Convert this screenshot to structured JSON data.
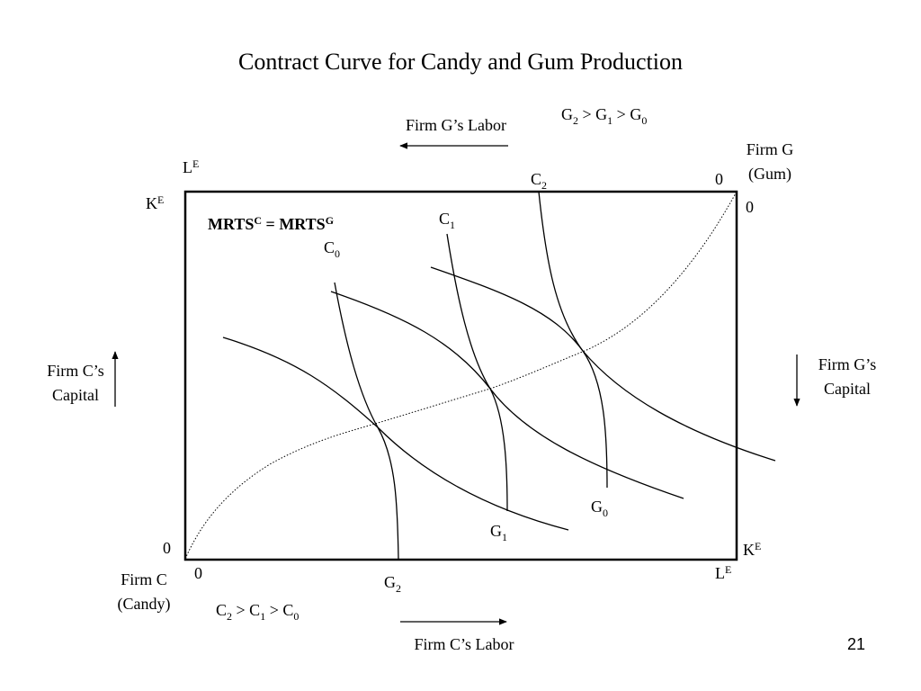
{
  "title": "Contract Curve for Candy and Gum Production",
  "slide_number": "21",
  "box": {
    "top_left": {
      "letter": "K",
      "sup": "E"
    },
    "top_left_above": {
      "letter": "L",
      "sup": "E"
    },
    "bottom_right_k": {
      "letter": "K",
      "sup": "E"
    },
    "bottom_right_l": {
      "letter": "L",
      "sup": "E"
    },
    "origin_c_left": "0",
    "origin_c_below": "0",
    "origin_g_top": "0",
    "origin_g_right": "0"
  },
  "firm_c": {
    "line1": "Firm C",
    "line2": "(Candy)"
  },
  "firm_g": {
    "line1": "Firm G",
    "line2": "(Gum)"
  },
  "firm_g_labor": "Firm G’s Labor",
  "firm_c_labor": "Firm C’s Labor",
  "firm_c_capital": {
    "line1": "Firm C’s",
    "line2": "Capital"
  },
  "firm_g_capital": {
    "line1": "Firm G’s",
    "line2": "Capital"
  },
  "mrts": {
    "base": "MRTS",
    "sup_c": "C",
    "equals": " = ",
    "base2": "MRTS",
    "sup_g": "G"
  },
  "ranking_g": {
    "a": "G",
    "a_sub": "2",
    "b": "G",
    "b_sub": "1",
    "c": "G",
    "c_sub": "0",
    "gt": " > "
  },
  "ranking_c": {
    "a": "C",
    "a_sub": "2",
    "b": "C",
    "b_sub": "1",
    "c": "C",
    "c_sub": "0",
    "gt": " > "
  },
  "isoquants_c": [
    {
      "letter": "C",
      "sub": "0"
    },
    {
      "letter": "C",
      "sub": "1"
    },
    {
      "letter": "C",
      "sub": "2"
    }
  ],
  "isoquants_g": [
    {
      "letter": "G",
      "sub": "0"
    },
    {
      "letter": "G",
      "sub": "1"
    },
    {
      "letter": "G",
      "sub": "2"
    }
  ]
}
